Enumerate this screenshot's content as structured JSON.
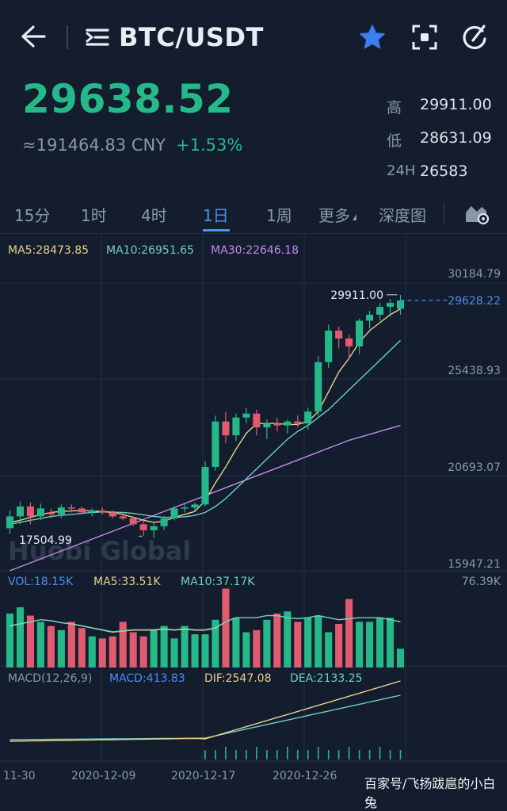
{
  "header": {
    "title": "BTC/USDT",
    "icons": [
      "back-arrow-icon",
      "list-icon",
      "star-icon",
      "focus-icon",
      "refresh-icon"
    ],
    "star_color": "#3d7df2"
  },
  "ticker": {
    "price": "29638.52",
    "cny": "≈191464.83 CNY",
    "change": "+1.53%",
    "high_label": "高",
    "high": "29911.00",
    "low_label": "低",
    "low": "28631.09",
    "vol_label": "24H",
    "vol": "26583"
  },
  "tabs": [
    {
      "label": "15分"
    },
    {
      "label": "1时"
    },
    {
      "label": "4时"
    },
    {
      "label": "1日",
      "active": true
    },
    {
      "label": "1周"
    },
    {
      "label": "更多"
    },
    {
      "label": "深度图"
    }
  ],
  "watermark": "百家号/飞扬跋扈的小白兔",
  "chart_data": {
    "type": "candlestick",
    "ma_legend": {
      "ma5": "MA5:28473.85",
      "ma10": "MA10:26951.65",
      "ma30": "MA30:22646.18"
    },
    "price_ticks": [
      "30184.79",
      "25438.93",
      "20693.07",
      "15947.21"
    ],
    "price_range": [
      15947.21,
      30184.79
    ],
    "current_price": "29628.22",
    "max_label": "29911.00",
    "min_label": "17504.99",
    "logo": "Huobi Global",
    "vol_legend": {
      "vol": "VOL:18.15K",
      "ma5": "MA5:33.51K",
      "ma10": "MA10:37.17K"
    },
    "vol_max": "76.39K",
    "macd_legend": {
      "params": "MACD(12,26,9)",
      "macd": "MACD:413.83",
      "dif": "DIF:2547.08",
      "dea": "DEA:2133.25"
    },
    "date_ticks": [
      "11-30",
      "2020-12-09",
      "2020-12-17",
      "2020-12-26"
    ],
    "colors": {
      "up": "#25b98a",
      "down": "#e05b6f",
      "ma5": "#e8d08a",
      "ma10": "#6fd0c0",
      "ma30": "#c48ae8",
      "accent": "#4f8df0"
    },
    "candles": [
      {
        "o": 18100,
        "h": 19000,
        "l": 17800,
        "c": 18700
      },
      {
        "o": 18700,
        "h": 19450,
        "l": 18300,
        "c": 19200
      },
      {
        "o": 19200,
        "h": 19400,
        "l": 18300,
        "c": 18700
      },
      {
        "o": 18700,
        "h": 19350,
        "l": 18500,
        "c": 19100
      },
      {
        "o": 18900,
        "h": 19100,
        "l": 18600,
        "c": 18800
      },
      {
        "o": 18800,
        "h": 19300,
        "l": 18600,
        "c": 19150
      },
      {
        "o": 19150,
        "h": 19300,
        "l": 18900,
        "c": 19100
      },
      {
        "o": 19100,
        "h": 19200,
        "l": 18800,
        "c": 18900
      },
      {
        "o": 18900,
        "h": 19100,
        "l": 18700,
        "c": 19000
      },
      {
        "o": 19000,
        "h": 19150,
        "l": 18800,
        "c": 18900
      },
      {
        "o": 18900,
        "h": 19000,
        "l": 18600,
        "c": 18700
      },
      {
        "o": 18700,
        "h": 18900,
        "l": 18500,
        "c": 18600
      },
      {
        "o": 18600,
        "h": 18700,
        "l": 18200,
        "c": 18300
      },
      {
        "o": 18300,
        "h": 18500,
        "l": 17700,
        "c": 18000
      },
      {
        "o": 18000,
        "h": 18400,
        "l": 17600,
        "c": 18200
      },
      {
        "o": 18200,
        "h": 18700,
        "l": 18000,
        "c": 18600
      },
      {
        "o": 18600,
        "h": 19200,
        "l": 18500,
        "c": 19100
      },
      {
        "o": 19100,
        "h": 19300,
        "l": 18900,
        "c": 19150
      },
      {
        "o": 19150,
        "h": 19400,
        "l": 18950,
        "c": 19300
      },
      {
        "o": 19300,
        "h": 21500,
        "l": 19200,
        "c": 21200
      },
      {
        "o": 21200,
        "h": 23800,
        "l": 21000,
        "c": 23500
      },
      {
        "o": 23500,
        "h": 24000,
        "l": 22400,
        "c": 22800
      },
      {
        "o": 22800,
        "h": 23900,
        "l": 22500,
        "c": 23700
      },
      {
        "o": 23700,
        "h": 24200,
        "l": 23400,
        "c": 23900
      },
      {
        "o": 23900,
        "h": 24100,
        "l": 22800,
        "c": 23200
      },
      {
        "o": 23200,
        "h": 23600,
        "l": 22600,
        "c": 23400
      },
      {
        "o": 23400,
        "h": 23700,
        "l": 23000,
        "c": 23300
      },
      {
        "o": 23300,
        "h": 23600,
        "l": 22900,
        "c": 23500
      },
      {
        "o": 23500,
        "h": 23800,
        "l": 23200,
        "c": 23400
      },
      {
        "o": 23400,
        "h": 24200,
        "l": 23100,
        "c": 24000
      },
      {
        "o": 24000,
        "h": 26800,
        "l": 23800,
        "c": 26500
      },
      {
        "o": 26500,
        "h": 28400,
        "l": 26200,
        "c": 28100
      },
      {
        "o": 28100,
        "h": 28300,
        "l": 27200,
        "c": 27700
      },
      {
        "o": 27700,
        "h": 27900,
        "l": 26700,
        "c": 27300
      },
      {
        "o": 27300,
        "h": 28700,
        "l": 26900,
        "c": 28600
      },
      {
        "o": 28600,
        "h": 29100,
        "l": 28200,
        "c": 28900
      },
      {
        "o": 28900,
        "h": 29500,
        "l": 28600,
        "c": 29300
      },
      {
        "o": 29300,
        "h": 29700,
        "l": 28800,
        "c": 29500
      },
      {
        "o": 29200,
        "h": 29911,
        "l": 28900,
        "c": 29628
      }
    ],
    "ma5": [
      18400,
      18500,
      18650,
      18800,
      18900,
      18950,
      18980,
      19000,
      18980,
      18950,
      18900,
      18800,
      18650,
      18500,
      18400,
      18450,
      18650,
      18800,
      18950,
      19500,
      20400,
      21200,
      22100,
      22900,
      23400,
      23400,
      23400,
      23350,
      23350,
      23500,
      24000,
      25000,
      26000,
      26700,
      27500,
      28100,
      28500,
      28900,
      29200
    ],
    "ma10": [
      18300,
      18400,
      18500,
      18600,
      18700,
      18750,
      18800,
      18850,
      18900,
      18920,
      18920,
      18900,
      18850,
      18780,
      18700,
      18650,
      18650,
      18680,
      18750,
      18900,
      19200,
      19600,
      20100,
      20600,
      21100,
      21600,
      22100,
      22600,
      23000,
      23300,
      23700,
      24100,
      24600,
      25100,
      25600,
      26100,
      26600,
      27100,
      27600
    ],
    "ma30": [
      15950,
      16150,
      16350,
      16550,
      16750,
      16950,
      17150,
      17350,
      17550,
      17750,
      17950,
      18150,
      18350,
      18550,
      18750,
      18950,
      19150,
      19350,
      19550,
      19750,
      19950,
      20150,
      20350,
      20550,
      20750,
      20950,
      21150,
      21350,
      21550,
      21750,
      21950,
      22150,
      22350,
      22550,
      22700,
      22850,
      23000,
      23150,
      23300
    ],
    "volumes": [
      52,
      58,
      50,
      44,
      40,
      36,
      44,
      38,
      30,
      28,
      30,
      44,
      34,
      30,
      36,
      40,
      28,
      40,
      32,
      32,
      46,
      76,
      48,
      34,
      36,
      46,
      52,
      54,
      44,
      48,
      50,
      34,
      42,
      66,
      44,
      44,
      48,
      48,
      18.15
    ],
    "vol_ma": [
      40,
      42,
      44,
      46,
      45,
      43,
      42,
      40,
      38,
      36,
      34,
      35,
      36,
      36,
      36,
      37,
      36,
      37,
      36,
      36,
      38,
      44,
      48,
      48,
      48,
      50,
      50,
      48,
      47,
      48,
      50,
      48,
      46,
      47,
      48,
      48,
      48,
      46,
      44
    ]
  }
}
